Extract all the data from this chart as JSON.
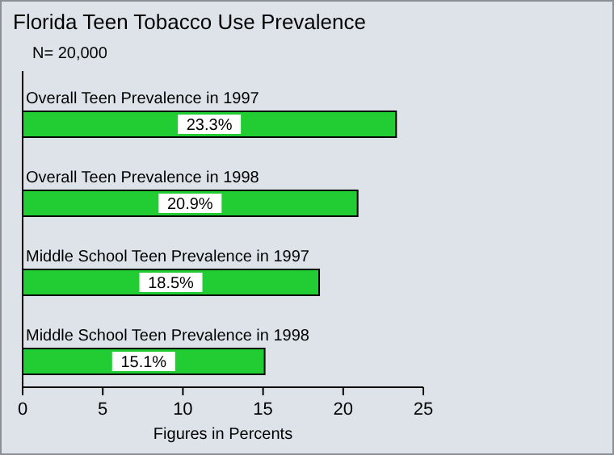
{
  "chart_data": {
    "type": "bar",
    "orientation": "horizontal",
    "title": "Florida Teen Tobacco Use Prevalence",
    "subtitle": "N= 20,000",
    "xlabel": "Figures in Percents",
    "categories": [
      "Overall Teen Prevalence in 1997",
      "Overall Teen Prevalence in 1998",
      "Middle School Teen Prevalence in 1997",
      "Middle School Teen Prevalence in 1998"
    ],
    "values": [
      23.3,
      20.9,
      18.5,
      15.1
    ],
    "value_labels": [
      "23.3%",
      "20.9%",
      "18.5%",
      "15.1%"
    ],
    "color": "#22cc33",
    "xlim": [
      0,
      25
    ],
    "xticks": [
      0,
      5,
      10,
      15,
      20,
      25
    ]
  }
}
